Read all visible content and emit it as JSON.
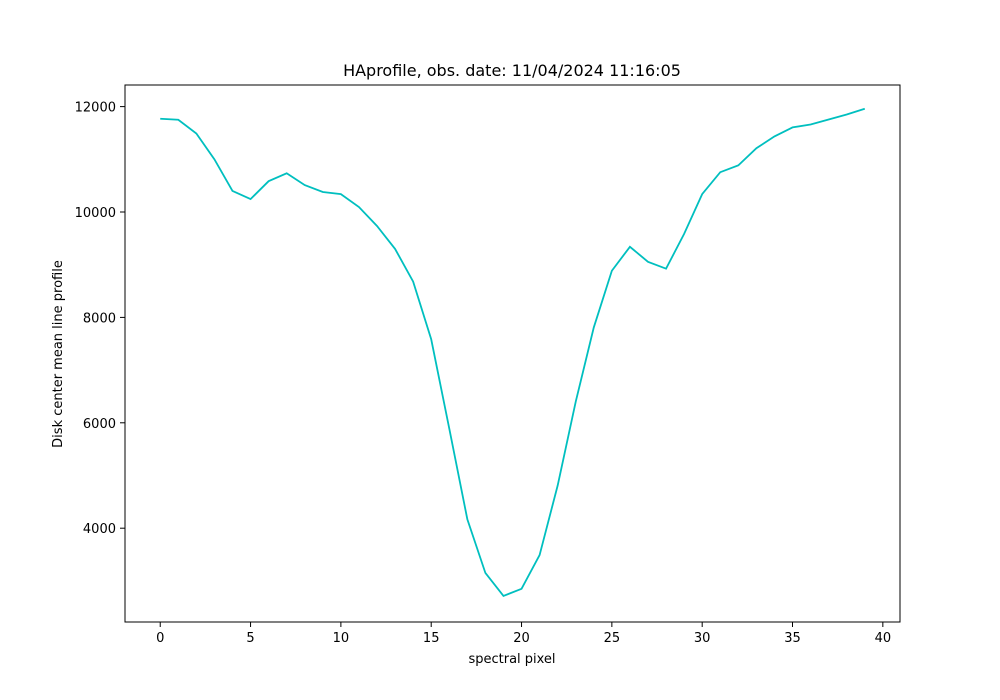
{
  "chart_data": {
    "type": "line",
    "title": "HAprofile, obs. date: 11/04/2024 11:16:05",
    "x_label": "spectral pixel",
    "y_label": "Disk center mean line profile",
    "x": [
      0,
      1,
      2,
      3,
      4,
      5,
      6,
      7,
      8,
      9,
      10,
      11,
      12,
      13,
      14,
      15,
      16,
      17,
      18,
      19,
      20,
      21,
      22,
      23,
      24,
      25,
      26,
      27,
      28,
      29,
      30,
      31,
      32,
      33,
      34,
      35,
      36,
      37,
      38,
      39
    ],
    "series": [
      {
        "name": "HAprofile",
        "color": "#00bfbf",
        "values": [
          11770,
          11750,
          11490,
          11000,
          10400,
          10245,
          10585,
          10735,
          10510,
          10380,
          10340,
          10095,
          9735,
          9300,
          8680,
          7585,
          5890,
          4170,
          3150,
          2715,
          2850,
          3490,
          4810,
          6400,
          7810,
          8885,
          9340,
          9055,
          8925,
          9585,
          10340,
          10755,
          10885,
          11210,
          11435,
          11605,
          11660,
          11755,
          11850,
          11960
        ]
      }
    ],
    "xlim": [
      -1.95,
      40.95
    ],
    "xticks": [
      0,
      5,
      10,
      15,
      20,
      25,
      30,
      35,
      40
    ],
    "ylim": [
      2220,
      12410
    ],
    "yticks": [
      4000,
      6000,
      8000,
      10000,
      12000
    ],
    "grid": false
  }
}
